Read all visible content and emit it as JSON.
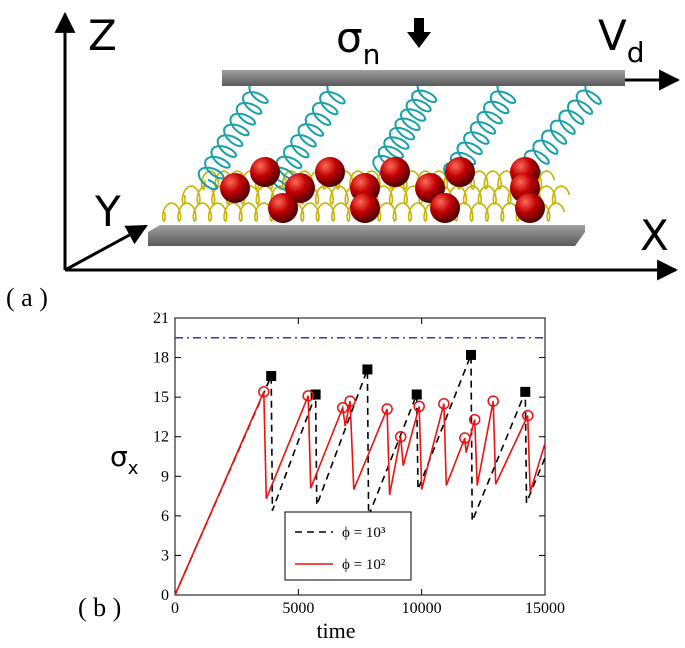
{
  "panel_a": {
    "label": "( a )",
    "axis_z": "Z",
    "axis_y": "Y",
    "axis_x": "X",
    "normal_stress": {
      "base": "σ",
      "sub": "n"
    },
    "drive_velocity": {
      "base": "V",
      "sub": "d"
    }
  },
  "chart_data": {
    "type": "line",
    "panel_label": "( b )",
    "xlabel": "time",
    "ylabel": {
      "base": "σ",
      "sub": "x"
    },
    "xlim": [
      0,
      15000
    ],
    "ylim": [
      0,
      21
    ],
    "xticks": [
      0,
      5000,
      10000,
      15000
    ],
    "yticks": [
      0,
      3,
      6,
      9,
      12,
      15,
      18,
      21
    ],
    "hlines": [
      {
        "value": 19.5,
        "color": "#3333cc",
        "dash": "dashdot"
      }
    ],
    "series": [
      {
        "name": "ϕ = 10³",
        "color": "#000000",
        "dash": "dashed",
        "x": [
          0,
          3900,
          3950,
          5700,
          5750,
          7800,
          7850,
          9800,
          9850,
          12000,
          12050,
          14200,
          14250,
          15000
        ],
        "values": [
          0,
          16.6,
          6.4,
          15.2,
          6.8,
          17.1,
          6.0,
          15.2,
          8.0,
          18.2,
          5.6,
          15.4,
          7.0,
          10.4
        ],
        "markers": {
          "shape": "square",
          "x": [
            3900,
            5700,
            7800,
            9800,
            12000,
            14200
          ],
          "values": [
            16.6,
            15.2,
            17.1,
            15.2,
            18.2,
            15.4
          ]
        }
      },
      {
        "name": "ϕ = 10²",
        "color": "#ee1111",
        "dash": "solid",
        "x": [
          0,
          3600,
          3700,
          5400,
          5500,
          6800,
          6900,
          7100,
          7250,
          8600,
          8700,
          9150,
          9250,
          9900,
          10000,
          10900,
          11000,
          11750,
          11800,
          12150,
          12250,
          12900,
          13000,
          14300,
          14400,
          15000
        ],
        "values": [
          0,
          15.4,
          7.3,
          15.1,
          8.1,
          14.2,
          12.8,
          14.7,
          8.0,
          14.1,
          7.6,
          12.0,
          9.8,
          14.3,
          8.0,
          14.5,
          8.3,
          11.9,
          10.8,
          13.3,
          8.3,
          14.7,
          8.4,
          13.6,
          7.8,
          11.5
        ],
        "markers": {
          "shape": "circle",
          "x": [
            3600,
            5400,
            6800,
            7100,
            8600,
            9150,
            9900,
            10900,
            11750,
            12150,
            12900,
            14300
          ],
          "values": [
            15.4,
            15.1,
            14.2,
            14.7,
            14.1,
            12.0,
            14.3,
            14.5,
            11.9,
            13.3,
            14.7,
            13.6
          ]
        }
      }
    ]
  }
}
